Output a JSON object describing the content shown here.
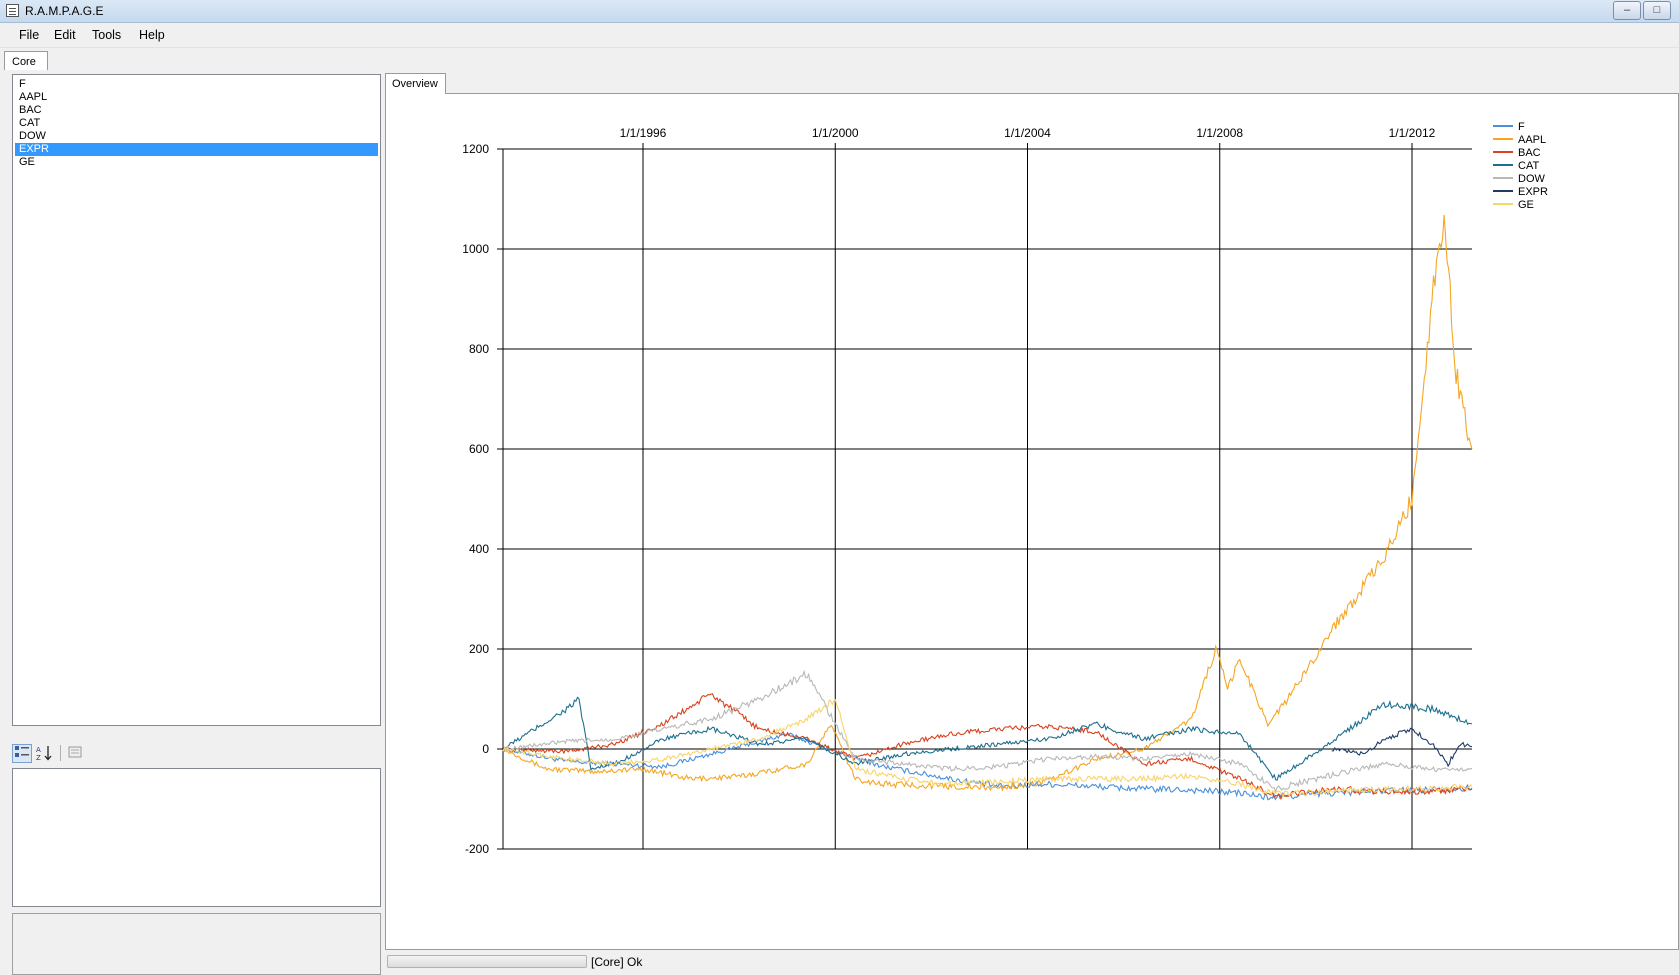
{
  "window": {
    "title": "R.A.M.P.A.G.E",
    "buttons": [
      "–",
      "□"
    ]
  },
  "menu": [
    {
      "label": "File"
    },
    {
      "label": "Edit"
    },
    {
      "label": "Tools"
    },
    {
      "label": "Help"
    }
  ],
  "tabs": {
    "left": "Core",
    "right": "Overview"
  },
  "symbols": [
    {
      "label": "F",
      "selected": false
    },
    {
      "label": "AAPL",
      "selected": false
    },
    {
      "label": "BAC",
      "selected": false
    },
    {
      "label": "CAT",
      "selected": false
    },
    {
      "label": "DOW",
      "selected": false
    },
    {
      "label": "EXPR",
      "selected": true
    },
    {
      "label": "GE",
      "selected": false
    }
  ],
  "property_toolbar": {
    "buttons": [
      "categorized-icon",
      "sort-alphabetical-icon",
      "property-pages-icon"
    ]
  },
  "status": {
    "text": "[Core] Ok",
    "progress": 0
  },
  "chart_data": {
    "type": "line",
    "title": "",
    "xlabel": "",
    "ylabel": "",
    "x_ticks": [
      "1/1/1996",
      "1/1/2000",
      "1/1/2004",
      "1/1/2008",
      "1/1/2012"
    ],
    "xlim": [
      "1993-02-01",
      "2013-04-01"
    ],
    "ylim": [
      -200,
      1200
    ],
    "y_ticks": [
      -200,
      0,
      200,
      400,
      600,
      800,
      1000,
      1200
    ],
    "grid": true,
    "legend_position": "top-right",
    "series": [
      {
        "name": "F",
        "color": "#4a90d9",
        "points": [
          [
            "1993-02-01",
            0
          ],
          [
            "1994-06-01",
            -25
          ],
          [
            "1995-06-01",
            -30
          ],
          [
            "1996-06-01",
            -35
          ],
          [
            "1997-06-01",
            -10
          ],
          [
            "1998-06-01",
            15
          ],
          [
            "1999-01-01",
            30
          ],
          [
            "2000-01-01",
            -5
          ],
          [
            "2001-01-01",
            -35
          ],
          [
            "2002-06-01",
            -60
          ],
          [
            "2003-06-01",
            -75
          ],
          [
            "2004-06-01",
            -70
          ],
          [
            "2005-06-01",
            -75
          ],
          [
            "2006-06-01",
            -80
          ],
          [
            "2007-06-01",
            -82
          ],
          [
            "2008-06-01",
            -88
          ],
          [
            "2009-01-01",
            -97
          ],
          [
            "2010-01-01",
            -90
          ],
          [
            "2011-01-01",
            -85
          ],
          [
            "2012-01-01",
            -82
          ],
          [
            "2013-04-01",
            -78
          ]
        ]
      },
      {
        "name": "AAPL",
        "color": "#f5a623",
        "points": [
          [
            "1993-02-01",
            0
          ],
          [
            "1994-01-01",
            -40
          ],
          [
            "1995-01-01",
            -45
          ],
          [
            "1996-01-01",
            -40
          ],
          [
            "1997-01-01",
            -60
          ],
          [
            "1998-01-01",
            -55
          ],
          [
            "1999-06-01",
            -30
          ],
          [
            "1999-12-01",
            50
          ],
          [
            "2000-06-01",
            -60
          ],
          [
            "2001-01-01",
            -70
          ],
          [
            "2002-06-01",
            -75
          ],
          [
            "2003-06-01",
            -78
          ],
          [
            "2004-06-01",
            -65
          ],
          [
            "2005-06-01",
            -20
          ],
          [
            "2006-06-01",
            0
          ],
          [
            "2007-06-01",
            60
          ],
          [
            "2007-12-01",
            200
          ],
          [
            "2008-03-01",
            120
          ],
          [
            "2008-06-01",
            180
          ],
          [
            "2009-01-01",
            50
          ],
          [
            "2009-06-01",
            100
          ],
          [
            "2010-06-01",
            250
          ],
          [
            "2011-06-01",
            380
          ],
          [
            "2012-01-01",
            500
          ],
          [
            "2012-06-01",
            900
          ],
          [
            "2012-09-01",
            1070
          ],
          [
            "2012-12-01",
            750
          ],
          [
            "2013-04-01",
            600
          ]
        ]
      },
      {
        "name": "BAC",
        "color": "#d9421c",
        "points": [
          [
            "1993-02-01",
            0
          ],
          [
            "1994-06-01",
            -5
          ],
          [
            "1995-06-01",
            10
          ],
          [
            "1996-06-01",
            50
          ],
          [
            "1997-06-01",
            110
          ],
          [
            "1998-06-01",
            40
          ],
          [
            "1999-06-01",
            20
          ],
          [
            "2000-06-01",
            -20
          ],
          [
            "2001-06-01",
            10
          ],
          [
            "2002-06-01",
            30
          ],
          [
            "2003-06-01",
            40
          ],
          [
            "2004-06-01",
            45
          ],
          [
            "2005-06-01",
            35
          ],
          [
            "2006-06-01",
            -30
          ],
          [
            "2007-06-01",
            -20
          ],
          [
            "2008-06-01",
            -60
          ],
          [
            "2009-03-01",
            -95
          ],
          [
            "2010-06-01",
            -80
          ],
          [
            "2011-06-01",
            -85
          ],
          [
            "2012-06-01",
            -85
          ],
          [
            "2013-04-01",
            -80
          ]
        ]
      },
      {
        "name": "CAT",
        "color": "#1d6f8f",
        "points": [
          [
            "1993-02-01",
            0
          ],
          [
            "1994-06-01",
            80
          ],
          [
            "1994-09-01",
            100
          ],
          [
            "1994-12-01",
            -40
          ],
          [
            "1995-06-01",
            -30
          ],
          [
            "1996-06-01",
            20
          ],
          [
            "1997-06-01",
            40
          ],
          [
            "1998-06-01",
            10
          ],
          [
            "1999-06-01",
            20
          ],
          [
            "2000-06-01",
            -30
          ],
          [
            "2001-06-01",
            -10
          ],
          [
            "2002-06-01",
            0
          ],
          [
            "2003-06-01",
            10
          ],
          [
            "2004-06-01",
            20
          ],
          [
            "2005-06-01",
            50
          ],
          [
            "2006-06-01",
            20
          ],
          [
            "2007-06-01",
            40
          ],
          [
            "2008-06-01",
            30
          ],
          [
            "2009-03-01",
            -60
          ],
          [
            "2010-06-01",
            20
          ],
          [
            "2011-06-01",
            90
          ],
          [
            "2012-06-01",
            80
          ],
          [
            "2013-04-01",
            50
          ]
        ]
      },
      {
        "name": "DOW",
        "color": "#b8b8b8",
        "points": [
          [
            "1993-02-01",
            0
          ],
          [
            "1994-06-01",
            15
          ],
          [
            "1995-06-01",
            20
          ],
          [
            "1996-06-01",
            40
          ],
          [
            "1997-06-01",
            60
          ],
          [
            "1998-06-01",
            100
          ],
          [
            "1999-06-01",
            150
          ],
          [
            "2000-06-01",
            -20
          ],
          [
            "2001-06-01",
            -30
          ],
          [
            "2002-06-01",
            -40
          ],
          [
            "2003-06-01",
            -35
          ],
          [
            "2004-06-01",
            -20
          ],
          [
            "2005-06-01",
            -15
          ],
          [
            "2006-06-01",
            -20
          ],
          [
            "2007-06-01",
            -10
          ],
          [
            "2008-06-01",
            -30
          ],
          [
            "2009-03-01",
            -80
          ],
          [
            "2010-06-01",
            -50
          ],
          [
            "2011-06-01",
            -30
          ],
          [
            "2012-06-01",
            -40
          ],
          [
            "2013-04-01",
            -40
          ]
        ]
      },
      {
        "name": "EXPR",
        "color": "#1f3a66",
        "points": [
          [
            "2010-05-01",
            0
          ],
          [
            "2011-01-01",
            -10
          ],
          [
            "2011-06-01",
            20
          ],
          [
            "2012-01-01",
            40
          ],
          [
            "2012-06-01",
            10
          ],
          [
            "2012-10-01",
            -30
          ],
          [
            "2013-01-01",
            10
          ],
          [
            "2013-04-01",
            5
          ]
        ]
      },
      {
        "name": "GE",
        "color": "#f9d46b",
        "points": [
          [
            "1993-02-01",
            0
          ],
          [
            "1994-06-01",
            -20
          ],
          [
            "1995-06-01",
            -30
          ],
          [
            "1996-06-01",
            -20
          ],
          [
            "1997-06-01",
            0
          ],
          [
            "1998-06-01",
            20
          ],
          [
            "1999-06-01",
            60
          ],
          [
            "2000-01-01",
            100
          ],
          [
            "2000-06-01",
            -40
          ],
          [
            "2001-06-01",
            -60
          ],
          [
            "2002-06-01",
            -70
          ],
          [
            "2003-06-01",
            -65
          ],
          [
            "2004-06-01",
            -60
          ],
          [
            "2005-06-01",
            -60
          ],
          [
            "2006-06-01",
            -60
          ],
          [
            "2007-06-01",
            -55
          ],
          [
            "2008-06-01",
            -70
          ],
          [
            "2009-03-01",
            -90
          ],
          [
            "2010-06-01",
            -85
          ],
          [
            "2011-06-01",
            -80
          ],
          [
            "2012-06-01",
            -80
          ],
          [
            "2013-04-01",
            -75
          ]
        ]
      }
    ]
  }
}
